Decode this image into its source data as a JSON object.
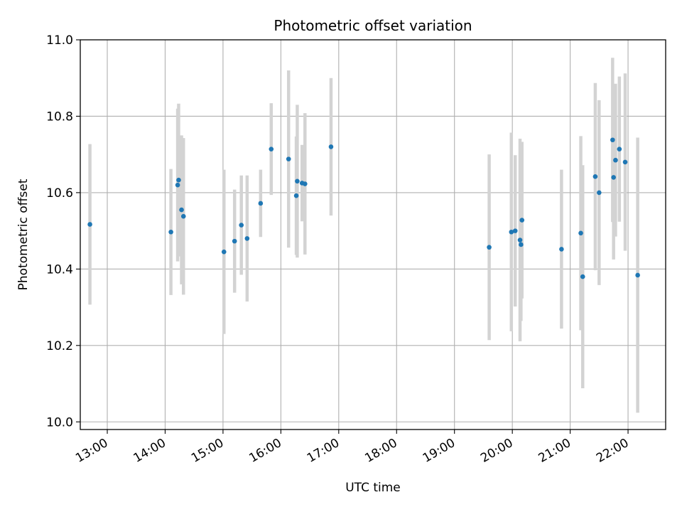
{
  "chart_data": {
    "type": "scatter",
    "title": "Photometric offset variation",
    "xlabel": "UTC time",
    "ylabel": "Photometric offset",
    "xlim": [
      "12:32",
      "22:39"
    ],
    "ylim": [
      9.98,
      11.0
    ],
    "yticks": [
      "10.0",
      "10.2",
      "10.4",
      "10.6",
      "10.8",
      "11.0"
    ],
    "xticks": [
      "13:00",
      "14:00",
      "15:00",
      "16:00",
      "17:00",
      "18:00",
      "19:00",
      "20:00",
      "21:00",
      "22:00"
    ],
    "grid": true,
    "colors": {
      "point": "#1f77b4",
      "errorbar": "#d3d3d3",
      "grid": "#b0b0b0"
    },
    "series": [
      {
        "points": [
          {
            "time": "12:42",
            "y": 10.517,
            "err": 0.21
          },
          {
            "time": "14:06",
            "y": 10.497,
            "err": 0.165
          },
          {
            "time": "14:13",
            "y": 10.62,
            "err": 0.2
          },
          {
            "time": "14:14",
            "y": 10.633,
            "err": 0.2
          },
          {
            "time": "14:17",
            "y": 10.555,
            "err": 0.195
          },
          {
            "time": "14:19",
            "y": 10.538,
            "err": 0.205
          },
          {
            "time": "15:01",
            "y": 10.445,
            "err": 0.215
          },
          {
            "time": "15:12",
            "y": 10.473,
            "err": 0.135
          },
          {
            "time": "15:19",
            "y": 10.515,
            "err": 0.13
          },
          {
            "time": "15:25",
            "y": 10.48,
            "err": 0.165
          },
          {
            "time": "15:39",
            "y": 10.572,
            "err": 0.088
          },
          {
            "time": "15:50",
            "y": 10.714,
            "err": 0.12
          },
          {
            "time": "16:08",
            "y": 10.688,
            "err": 0.232
          },
          {
            "time": "16:16",
            "y": 10.592,
            "err": 0.155
          },
          {
            "time": "16:17",
            "y": 10.63,
            "err": 0.2
          },
          {
            "time": "16:22",
            "y": 10.625,
            "err": 0.1
          },
          {
            "time": "16:25",
            "y": 10.623,
            "err": 0.185
          },
          {
            "time": "16:52",
            "y": 10.72,
            "err": 0.18
          },
          {
            "time": "19:36",
            "y": 10.457,
            "err": 0.243
          },
          {
            "time": "19:59",
            "y": 10.497,
            "err": 0.26
          },
          {
            "time": "20:03",
            "y": 10.5,
            "err": 0.198
          },
          {
            "time": "20:08",
            "y": 10.476,
            "err": 0.265
          },
          {
            "time": "20:09",
            "y": 10.464,
            "err": 0.2
          },
          {
            "time": "20:10",
            "y": 10.528,
            "err": 0.205
          },
          {
            "time": "20:51",
            "y": 10.452,
            "err": 0.208
          },
          {
            "time": "21:11",
            "y": 10.494,
            "err": 0.254
          },
          {
            "time": "21:13",
            "y": 10.38,
            "err": 0.292
          },
          {
            "time": "21:26",
            "y": 10.642,
            "err": 0.245
          },
          {
            "time": "21:30",
            "y": 10.6,
            "err": 0.242
          },
          {
            "time": "21:44",
            "y": 10.738,
            "err": 0.215
          },
          {
            "time": "21:45",
            "y": 10.64,
            "err": 0.215
          },
          {
            "time": "21:47",
            "y": 10.685,
            "err": 0.2
          },
          {
            "time": "21:51",
            "y": 10.714,
            "err": 0.19
          },
          {
            "time": "21:57",
            "y": 10.68,
            "err": 0.232
          },
          {
            "time": "22:10",
            "y": 10.384,
            "err": 0.36
          }
        ]
      }
    ]
  }
}
